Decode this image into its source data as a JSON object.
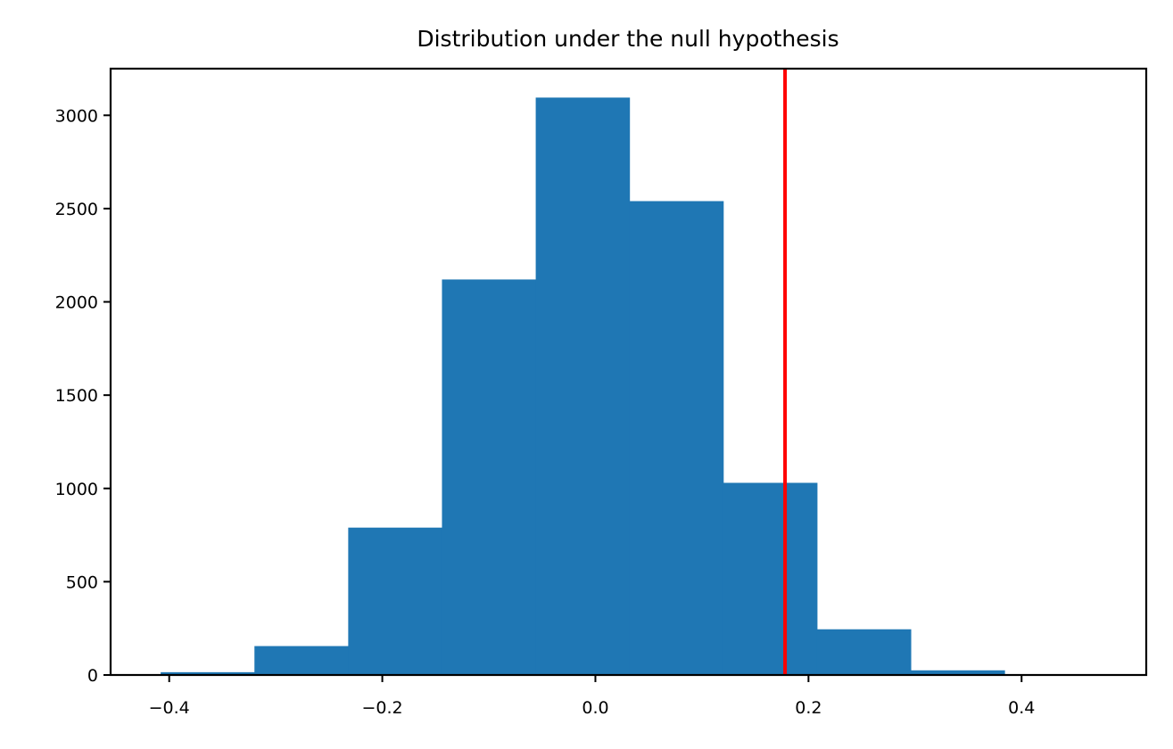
{
  "chart_data": {
    "type": "bar",
    "subtype": "histogram",
    "title": "Distribution under the null hypothesis",
    "xlabel": "",
    "ylabel": "",
    "xlim": [
      -0.455,
      0.517
    ],
    "ylim": [
      0,
      3250
    ],
    "x_ticks": [
      -0.4,
      -0.2,
      0.0,
      0.2,
      0.4
    ],
    "x_tick_labels": [
      "−0.4",
      "−0.2",
      "0.0",
      "0.2",
      "0.4"
    ],
    "y_ticks": [
      0,
      500,
      1000,
      1500,
      2000,
      2500,
      3000
    ],
    "y_tick_labels": [
      "0",
      "500",
      "1000",
      "1500",
      "2000",
      "2500",
      "3000"
    ],
    "bin_edges": [
      -0.408,
      -0.32,
      -0.232,
      -0.144,
      -0.056,
      0.032,
      0.12,
      0.208,
      0.296,
      0.384,
      0.472
    ],
    "values": [
      15,
      155,
      790,
      2120,
      3095,
      2540,
      1030,
      245,
      25,
      3
    ],
    "bar_color": "#1f77b4",
    "reference_line": {
      "x": 0.178,
      "color": "#ff0000"
    },
    "grid": false,
    "legend": "none"
  }
}
